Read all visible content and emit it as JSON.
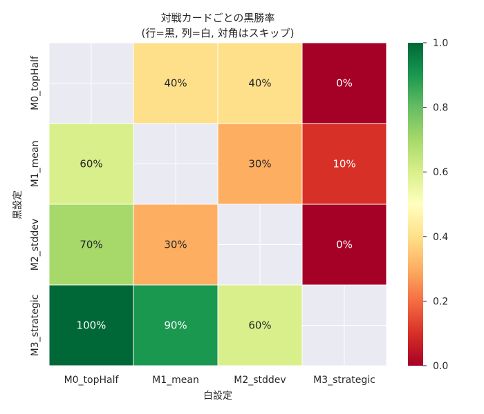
{
  "chart_data": {
    "type": "heatmap",
    "title_lines": [
      "対戦カードごとの黒勝率",
      "(行=黒, 列=白, 対角はスキップ)"
    ],
    "xlabel": "白設定",
    "ylabel": "黒設定",
    "row_labels": [
      "M0_topHalf",
      "M1_mean",
      "M2_stddev",
      "M3_strategic"
    ],
    "col_labels": [
      "M0_topHalf",
      "M1_mean",
      "M2_stddev",
      "M3_strategic"
    ],
    "values": [
      [
        null,
        0.4,
        0.4,
        0.0
      ],
      [
        0.6,
        null,
        0.3,
        0.1
      ],
      [
        0.7,
        0.3,
        null,
        0.0
      ],
      [
        1.0,
        0.9,
        0.6,
        null
      ]
    ],
    "cell_labels": [
      [
        "",
        "40%",
        "40%",
        "0%"
      ],
      [
        "60%",
        "",
        "30%",
        "10%"
      ],
      [
        "70%",
        "30%",
        "",
        "0%"
      ],
      [
        "100%",
        "90%",
        "60%",
        ""
      ]
    ],
    "colormap": "RdYlGn",
    "vmin": 0.0,
    "vmax": 1.0,
    "colorbar_ticks": [
      "0.0",
      "0.2",
      "0.4",
      "0.6",
      "0.8",
      "1.0"
    ],
    "colorbar_tick_values": [
      0.0,
      0.2,
      0.4,
      0.6,
      0.8,
      1.0
    ],
    "masked_cell_color": "#eaeaf2",
    "grid_color": "#ffffff"
  }
}
